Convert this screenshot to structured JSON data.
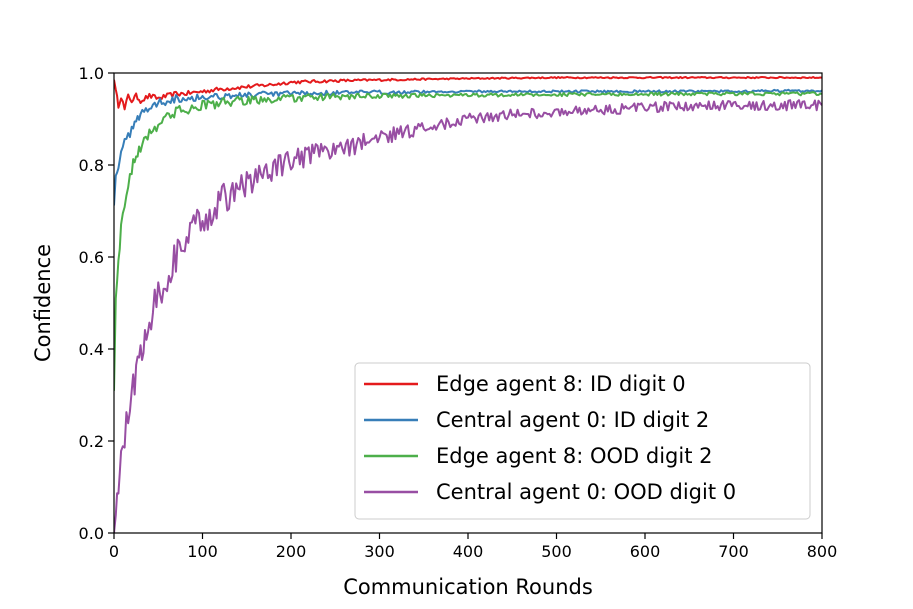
{
  "chart_data": {
    "type": "line",
    "title": "",
    "xlabel": "Communication Rounds",
    "ylabel": "Confidence",
    "xlim": [
      0,
      800
    ],
    "ylim": [
      0,
      1.0
    ],
    "xticks": [
      0,
      100,
      200,
      300,
      400,
      500,
      600,
      700,
      800
    ],
    "yticks": [
      0.0,
      0.2,
      0.4,
      0.6,
      0.8,
      1.0
    ],
    "xtick_labels": [
      "0",
      "100",
      "200",
      "300",
      "400",
      "500",
      "600",
      "700",
      "800"
    ],
    "ytick_labels": [
      "0.0",
      "0.2",
      "0.4",
      "0.6",
      "0.8",
      "1.0"
    ],
    "grid": false,
    "legend_position": "bottom-right",
    "series": [
      {
        "name": "Edge agent 8: ID digit 0",
        "color": "#e41a1c",
        "x": [
          0,
          2,
          5,
          8,
          12,
          16,
          20,
          25,
          30,
          40,
          50,
          60,
          70,
          80,
          100,
          120,
          150,
          180,
          200,
          250,
          300,
          400,
          500,
          600,
          700,
          800
        ],
        "y": [
          0.99,
          0.96,
          0.93,
          0.95,
          0.92,
          0.95,
          0.94,
          0.95,
          0.94,
          0.95,
          0.945,
          0.95,
          0.955,
          0.955,
          0.96,
          0.965,
          0.97,
          0.975,
          0.98,
          0.983,
          0.985,
          0.988,
          0.99,
          0.99,
          0.99,
          0.99
        ]
      },
      {
        "name": "Central agent 0: ID digit 2",
        "color": "#377eb8",
        "x": [
          0,
          2,
          5,
          8,
          12,
          16,
          20,
          25,
          30,
          40,
          50,
          60,
          70,
          80,
          100,
          120,
          150,
          200,
          250,
          300,
          400,
          500,
          600,
          700,
          800
        ],
        "y": [
          0.72,
          0.78,
          0.8,
          0.82,
          0.85,
          0.86,
          0.88,
          0.9,
          0.91,
          0.925,
          0.935,
          0.94,
          0.945,
          0.945,
          0.948,
          0.95,
          0.952,
          0.955,
          0.957,
          0.958,
          0.96,
          0.96,
          0.96,
          0.96,
          0.962
        ]
      },
      {
        "name": "Edge agent 8: OOD digit 2",
        "color": "#4daf4a",
        "x": [
          0,
          2,
          5,
          8,
          12,
          16,
          20,
          25,
          30,
          40,
          50,
          60,
          70,
          80,
          100,
          120,
          150,
          200,
          250,
          300,
          400,
          500,
          600,
          700,
          800
        ],
        "y": [
          0.32,
          0.5,
          0.6,
          0.66,
          0.72,
          0.76,
          0.79,
          0.82,
          0.84,
          0.87,
          0.89,
          0.905,
          0.915,
          0.92,
          0.93,
          0.935,
          0.94,
          0.945,
          0.948,
          0.95,
          0.952,
          0.953,
          0.954,
          0.955,
          0.955
        ]
      },
      {
        "name": "Central agent 0: OOD digit 0",
        "color": "#984ea3",
        "x": [
          0,
          2,
          5,
          8,
          12,
          16,
          20,
          25,
          30,
          35,
          40,
          50,
          60,
          70,
          80,
          90,
          100,
          120,
          140,
          160,
          180,
          200,
          250,
          300,
          350,
          400,
          450,
          500,
          550,
          600,
          650,
          700,
          750,
          800
        ],
        "y": [
          0.02,
          0.05,
          0.1,
          0.15,
          0.2,
          0.25,
          0.3,
          0.35,
          0.4,
          0.44,
          0.47,
          0.52,
          0.56,
          0.6,
          0.63,
          0.66,
          0.68,
          0.72,
          0.75,
          0.77,
          0.79,
          0.81,
          0.83,
          0.86,
          0.88,
          0.9,
          0.91,
          0.915,
          0.92,
          0.925,
          0.928,
          0.93,
          0.93,
          0.93
        ]
      }
    ]
  }
}
